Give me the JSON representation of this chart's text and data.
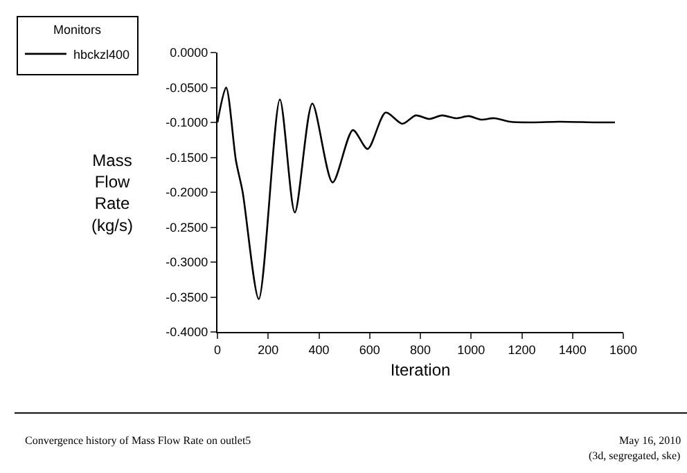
{
  "chart_data": {
    "type": "line",
    "xlabel": "Iteration",
    "ylabel": "Mass Flow Rate (kg/s)",
    "legend_title": "Monitors",
    "legend": "top left",
    "grid": false,
    "marker": "none",
    "line_style": "solid",
    "xlim": [
      0,
      1600
    ],
    "xticks": [
      0,
      200,
      400,
      600,
      800,
      1000,
      1200,
      1400,
      1600
    ],
    "ylim": [
      -0.4,
      0
    ],
    "yticks": [
      {
        "value": -0.4,
        "label": "-0.4000"
      },
      {
        "value": -0.35,
        "label": "-0.3500"
      },
      {
        "value": -0.3,
        "label": "-0.3000"
      },
      {
        "value": -0.25,
        "label": "-0.2500"
      },
      {
        "value": -0.2,
        "label": "-0.2000"
      },
      {
        "value": -0.15,
        "label": "-0.1500"
      },
      {
        "value": -0.1,
        "label": "-0.1000"
      },
      {
        "value": -0.05,
        "label": "-0.0500"
      },
      {
        "value": 0,
        "label": "0.0000"
      }
    ],
    "x": [
      0,
      34,
      73,
      99,
      163,
      246,
      305,
      374,
      454,
      534,
      592,
      663,
      729,
      782,
      835,
      885,
      941,
      991,
      1039,
      1092,
      1154,
      1241,
      1348,
      1491,
      1567
    ],
    "series": [
      {
        "name": "hbckzl400",
        "color": "#000000",
        "values": [
          -0.1,
          -0.05,
          -0.155,
          -0.199,
          -0.353,
          -0.067,
          -0.229,
          -0.073,
          -0.186,
          -0.111,
          -0.138,
          -0.086,
          -0.102,
          -0.09,
          -0.095,
          -0.09,
          -0.094,
          -0.091,
          -0.096,
          -0.094,
          -0.099,
          -0.1,
          -0.099,
          -0.1,
          -0.1
        ]
      }
    ],
    "annotations": [
      "Convergence history of Mass Flow Rate on outlet5",
      "May 16, 2010",
      "(3d, segregated, ske)"
    ]
  }
}
